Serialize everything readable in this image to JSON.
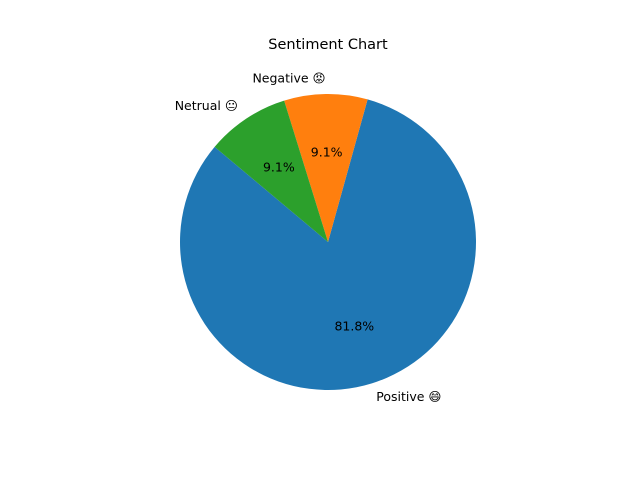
{
  "chart_data": {
    "type": "pie",
    "title": "Sentiment Chart",
    "categories": [
      "Positive 😄",
      "Negative 😡",
      "Netrual 😐"
    ],
    "values": [
      81.8,
      9.1,
      9.1
    ],
    "percent_labels": [
      "81.8%",
      "9.1%",
      "9.1%"
    ],
    "colors": [
      "#1f77b4",
      "#ff7f0e",
      "#2ca02c"
    ],
    "start_angle_deg": 140,
    "direction": "counterclockwise"
  }
}
